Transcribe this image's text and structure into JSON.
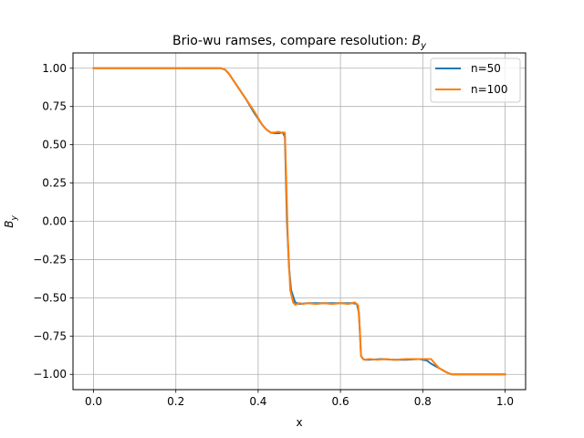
{
  "chart_data": {
    "type": "line",
    "title": "Brio-wu ramses, compare resolution: ",
    "title_math": "B",
    "title_math_sub": "y",
    "xlabel": "x",
    "ylabel": "B",
    "ylabel_sub": "y",
    "xlim": [
      -0.05,
      1.05
    ],
    "ylim": [
      -1.1,
      1.1
    ],
    "xticks": [
      0.0,
      0.2,
      0.4,
      0.6,
      0.8,
      1.0
    ],
    "xtick_labels": [
      "0.0",
      "0.2",
      "0.4",
      "0.6",
      "0.8",
      "1.0"
    ],
    "yticks": [
      1.0,
      0.75,
      0.5,
      0.25,
      0.0,
      -0.25,
      -0.5,
      -0.75,
      -1.0
    ],
    "ytick_labels": [
      "1.00",
      "0.75",
      "0.50",
      "0.25",
      "0.00",
      "−0.25",
      "−0.50",
      "−0.75",
      "−1.00"
    ],
    "grid": true,
    "legend_position": "upper right",
    "series": [
      {
        "name": "n=50",
        "color": "#1f77b4",
        "x": [
          0.0,
          0.3,
          0.31,
          0.32,
          0.33,
          0.35,
          0.37,
          0.39,
          0.41,
          0.42,
          0.43,
          0.44,
          0.45,
          0.46,
          0.465,
          0.47,
          0.475,
          0.48,
          0.49,
          0.5,
          0.52,
          0.55,
          0.58,
          0.61,
          0.63,
          0.64,
          0.645,
          0.65,
          0.655,
          0.66,
          0.67,
          0.7,
          0.73,
          0.76,
          0.79,
          0.81,
          0.82,
          0.84,
          0.86,
          0.87,
          0.88,
          0.9,
          1.0
        ],
        "y": [
          1.0,
          1.0,
          1.0,
          0.99,
          0.96,
          0.88,
          0.8,
          0.71,
          0.63,
          0.6,
          0.58,
          0.575,
          0.575,
          0.58,
          0.55,
          0.0,
          -0.3,
          -0.45,
          -0.53,
          -0.54,
          -0.535,
          -0.535,
          -0.535,
          -0.535,
          -0.535,
          -0.54,
          -0.6,
          -0.88,
          -0.9,
          -0.905,
          -0.905,
          -0.9,
          -0.905,
          -0.905,
          -0.9,
          -0.91,
          -0.93,
          -0.96,
          -0.99,
          -1.0,
          -1.0,
          -1.0,
          -1.0
        ]
      },
      {
        "name": "n=100",
        "color": "#ff7f0e",
        "x": [
          0.0,
          0.3,
          0.31,
          0.32,
          0.33,
          0.35,
          0.37,
          0.39,
          0.41,
          0.42,
          0.43,
          0.44,
          0.45,
          0.455,
          0.465,
          0.468,
          0.472,
          0.478,
          0.485,
          0.49,
          0.5,
          0.51,
          0.52,
          0.54,
          0.56,
          0.58,
          0.6,
          0.62,
          0.635,
          0.643,
          0.647,
          0.65,
          0.655,
          0.66,
          0.67,
          0.69,
          0.71,
          0.73,
          0.76,
          0.79,
          0.81,
          0.82,
          0.83,
          0.84,
          0.86,
          0.87,
          0.88,
          1.0
        ],
        "y": [
          1.0,
          1.0,
          1.0,
          0.99,
          0.96,
          0.88,
          0.8,
          0.72,
          0.63,
          0.6,
          0.58,
          0.58,
          0.585,
          0.58,
          0.58,
          0.3,
          -0.1,
          -0.45,
          -0.53,
          -0.545,
          -0.535,
          -0.54,
          -0.535,
          -0.54,
          -0.535,
          -0.54,
          -0.535,
          -0.54,
          -0.53,
          -0.55,
          -0.7,
          -0.88,
          -0.9,
          -0.905,
          -0.9,
          -0.905,
          -0.9,
          -0.905,
          -0.9,
          -0.9,
          -0.9,
          -0.9,
          -0.93,
          -0.96,
          -0.99,
          -1.0,
          -1.0,
          -1.0
        ]
      }
    ]
  }
}
